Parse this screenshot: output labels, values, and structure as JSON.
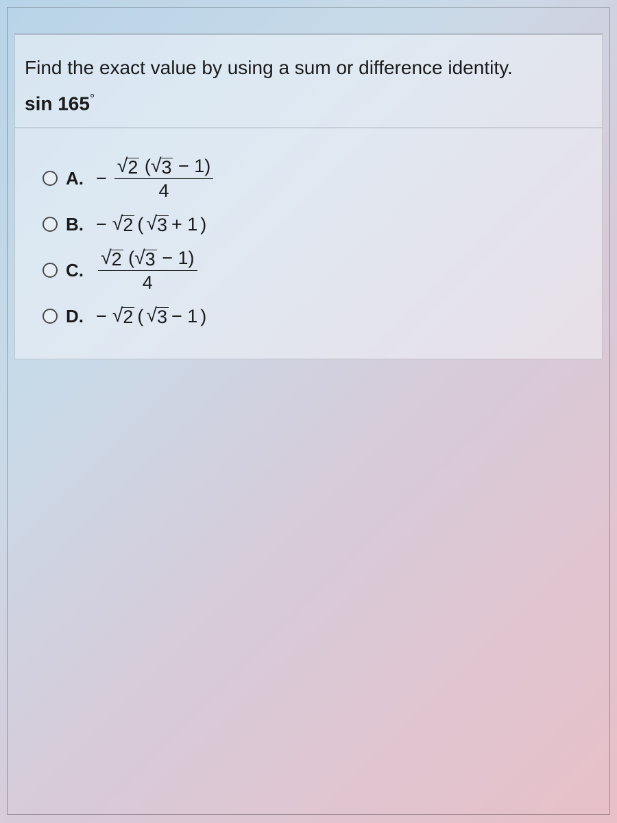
{
  "question": {
    "prompt": "Find the exact value by using a sum or difference identity.",
    "expression_prefix": "sin ",
    "expression_value": "165",
    "expression_degree": "°"
  },
  "options": [
    {
      "letter": "A.",
      "type": "fraction",
      "sign": "−",
      "num_sqrt_a": "2",
      "num_paren_sqrt": "3",
      "num_paren_op": " − 1",
      "den": "4"
    },
    {
      "letter": "B.",
      "type": "plain",
      "sign": "−",
      "sqrt_a": "2",
      "paren_sqrt": "3",
      "paren_op": " + 1"
    },
    {
      "letter": "C.",
      "type": "fraction",
      "sign": "",
      "num_sqrt_a": "2",
      "num_paren_sqrt": "3",
      "num_paren_op": " − 1",
      "den": "4"
    },
    {
      "letter": "D.",
      "type": "plain",
      "sign": "−",
      "sqrt_a": "2",
      "paren_sqrt": "3",
      "paren_op": " − 1"
    }
  ],
  "style": {
    "text_color": "#1a1a1a",
    "radio_border": "#4a4a4a",
    "gradient_start": "#b8d4e8",
    "gradient_end": "#e8c0c8",
    "font_size_question": 28,
    "font_size_option": 27
  }
}
